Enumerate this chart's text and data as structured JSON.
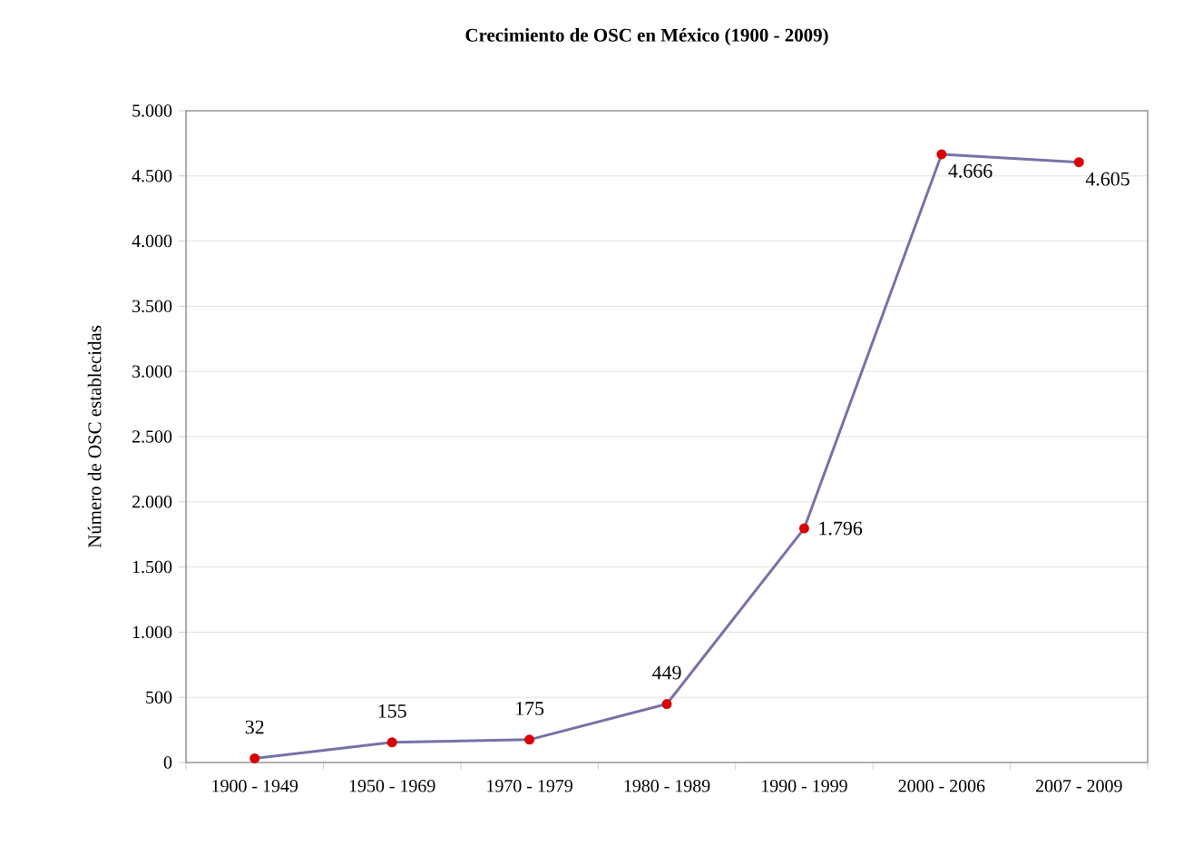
{
  "chart_data": {
    "type": "line",
    "title": "Crecimiento de OSC en México (1900 - 2009)",
    "ylabel": "Número de OSC establecidas",
    "categories": [
      "1900 - 1949",
      "1950 - 1969",
      "1970 - 1979",
      "1980 - 1989",
      "1990 - 1999",
      "2000 - 2006",
      "2007 - 2009"
    ],
    "series": [
      {
        "color": "#7573a8",
        "values": [
          32,
          155,
          175,
          449,
          1796,
          4666,
          4605
        ],
        "value_labels": [
          "32",
          "155",
          "175",
          "449",
          "1.796",
          "4.666",
          "4.605"
        ]
      }
    ],
    "ylim": [
      0,
      5000
    ],
    "yticks": [
      0,
      {
        "value": 500,
        "label": "500"
      },
      {
        "value": 1000,
        "label": "1.000"
      },
      {
        "value": 1500,
        "label": "1.500"
      },
      {
        "value": 2000,
        "label": "2.000"
      },
      {
        "value": 2500,
        "label": "2.500"
      },
      {
        "value": 3000,
        "label": "3.000"
      },
      {
        "value": 3500,
        "label": "3.500"
      },
      {
        "value": 4000,
        "label": "4.000"
      },
      {
        "value": 4500,
        "label": "4.500"
      },
      {
        "value": 5000,
        "label": "5.000"
      }
    ],
    "grid": "y",
    "marker": "circle",
    "line_style": "solid"
  }
}
